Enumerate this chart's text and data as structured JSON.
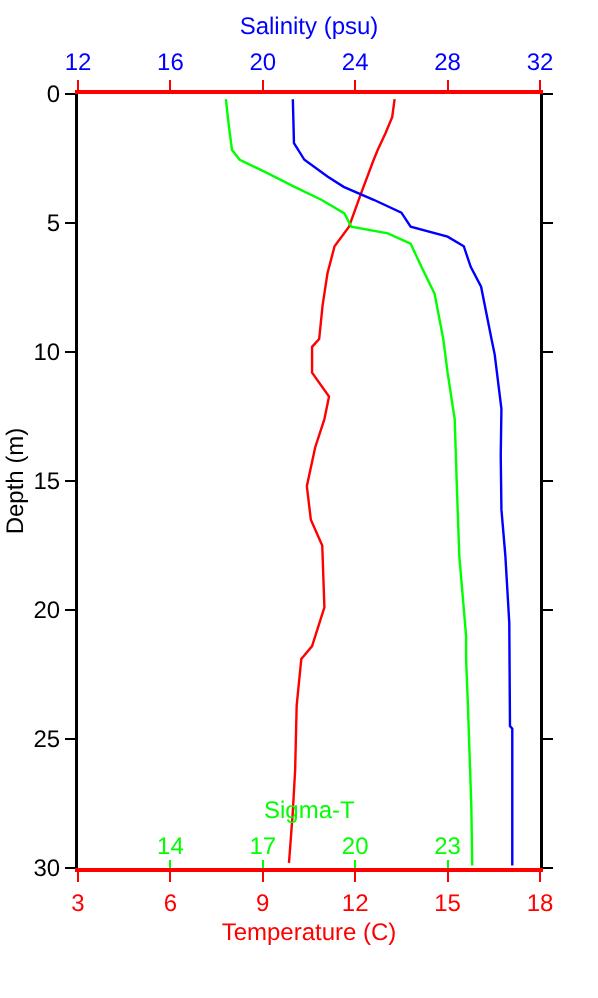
{
  "chart_data": [
    {
      "type": "line",
      "xlabel": "Temperature (C)",
      "x2label": "Salinity (psu)",
      "ylabel": "Depth (m)",
      "xlim": [
        3,
        18
      ],
      "xticks": [
        3,
        6,
        9,
        12,
        15,
        18
      ],
      "x2lim": [
        12,
        32
      ],
      "x2ticks": [
        12,
        16,
        20,
        24,
        28,
        32
      ],
      "ylim": [
        30,
        0
      ],
      "yticks": [
        0,
        5,
        10,
        15,
        20,
        25,
        30
      ],
      "grid": false,
      "marker": "none",
      "line_style": "solid",
      "series": [
        {
          "color": "#ff0000",
          "x": [
            13.28,
            13.2,
            12.99,
            12.73,
            12.6,
            12.19,
            11.8,
            11.33,
            11.1,
            10.94,
            10.83,
            10.6,
            10.6,
            11.15,
            11.0,
            10.7,
            10.43,
            10.56,
            10.93,
            11.0,
            10.6,
            10.25,
            10.1,
            10.05,
            9.97,
            9.85
          ],
          "values": [
            0.2,
            0.9,
            1.5,
            2.17,
            2.55,
            3.85,
            5.14,
            5.9,
            6.95,
            8.2,
            9.5,
            9.8,
            10.8,
            11.73,
            12.6,
            13.7,
            15.2,
            16.5,
            17.5,
            19.9,
            21.4,
            21.9,
            23.7,
            26.2,
            27.9,
            29.8
          ]
        },
        {
          "color": "#0000ff",
          "axis": "x2",
          "x": [
            21.3,
            21.35,
            21.8,
            22.8,
            23.5,
            24.8,
            26.0,
            26.4,
            28.0,
            28.7,
            29.0,
            29.45,
            29.9,
            30.04,
            30.33,
            30.3,
            30.33,
            30.5,
            30.67,
            30.7,
            30.8,
            30.8
          ],
          "values": [
            0.2,
            1.9,
            2.55,
            3.2,
            3.6,
            4.1,
            4.6,
            5.14,
            5.53,
            5.9,
            6.7,
            7.47,
            9.5,
            10.1,
            12.2,
            14.0,
            16.1,
            17.9,
            20.5,
            24.5,
            24.6,
            29.9
          ]
        }
      ]
    },
    {
      "type": "line",
      "xlabel": "Sigma-T",
      "xlim": [
        11,
        26
      ],
      "xticks": [
        14,
        17,
        20,
        23
      ],
      "ylim": [
        30,
        0
      ],
      "tick_labels": "x",
      "grid": false,
      "marker": "none",
      "line_style": "solid",
      "series": [
        {
          "color": "#00ff00",
          "x": [
            15.8,
            15.9,
            16.0,
            16.25,
            17.15,
            18.03,
            18.9,
            19.65,
            19.87,
            21.06,
            21.8,
            22.15,
            22.58,
            22.86,
            23.0,
            23.23,
            23.3,
            23.38,
            23.6,
            23.6,
            23.66,
            23.77,
            23.8
          ],
          "values": [
            0.2,
            1.26,
            2.17,
            2.55,
            3.07,
            3.6,
            4.1,
            4.63,
            5.14,
            5.4,
            5.8,
            6.7,
            7.75,
            9.5,
            10.8,
            12.6,
            15.2,
            17.9,
            21.0,
            21.9,
            23.7,
            27.6,
            29.9
          ]
        }
      ]
    }
  ]
}
